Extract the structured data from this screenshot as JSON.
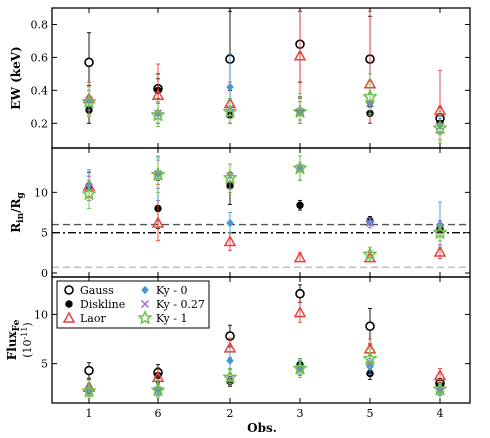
{
  "chart_data": {
    "type": "scatter",
    "x_categories": [
      "1",
      "6",
      "2",
      "3",
      "5",
      "4"
    ],
    "xlabel": "Obs.",
    "legend": {
      "placement": "lower-left of bottom panel",
      "entries": [
        {
          "key": "gauss",
          "label": "Gauss"
        },
        {
          "key": "diskline",
          "label": "Diskline"
        },
        {
          "key": "laor",
          "label": "Laor"
        },
        {
          "key": "ky0",
          "label": "Ky - 0"
        },
        {
          "key": "ky027",
          "label": "Ky - 0.27"
        },
        {
          "key": "ky1",
          "label": "Ky - 1"
        }
      ]
    },
    "series_styles": {
      "gauss": {
        "marker": "open-circle",
        "color": "#000000"
      },
      "diskline": {
        "marker": "filled-circle",
        "color": "#000000"
      },
      "laor": {
        "marker": "open-triangle",
        "color": "#e8413c"
      },
      "ky0": {
        "marker": "filled-diamond",
        "color": "#3f9bd6"
      },
      "ky027": {
        "marker": "x",
        "color": "#9b6fcf"
      },
      "ky1": {
        "marker": "open-star",
        "color": "#6cc24a"
      }
    },
    "panels": [
      {
        "id": "ew",
        "ylabel_main": "EW (keV)",
        "ylabel_sub": "",
        "ylim": [
          0.05,
          0.9
        ],
        "yticks": [
          0.2,
          0.4,
          0.6,
          0.8
        ],
        "yticklabels": [
          "0.2",
          "0.4",
          "0.6",
          "0.8"
        ],
        "hlines": [],
        "series": [
          {
            "key": "gauss",
            "points": [
              [
                0,
                0.57,
                0.75,
                0.43
              ],
              [
                1,
                0.41,
                0.5,
                0.35
              ],
              [
                2,
                0.59,
                0.88,
                0.4
              ],
              [
                3,
                0.68,
                0.88,
                0.45
              ],
              [
                4,
                0.59,
                0.85,
                0.3
              ],
              [
                5,
                0.23,
                0.3,
                0.17
              ]
            ]
          },
          {
            "key": "diskline",
            "points": [
              [
                0,
                0.28,
                0.35,
                0.2
              ],
              [
                1,
                0.4,
                0.47,
                0.33
              ],
              [
                2,
                0.25,
                0.3,
                0.2
              ],
              [
                3,
                0.27,
                0.36,
                0.2
              ],
              [
                4,
                0.26,
                0.3,
                0.2
              ],
              [
                5,
                0.2,
                0.26,
                0.14
              ]
            ]
          },
          {
            "key": "laor",
            "points": [
              [
                0,
                0.35,
                0.45,
                0.25
              ],
              [
                1,
                0.37,
                0.56,
                0.2
              ],
              [
                2,
                0.32,
                0.45,
                0.2
              ],
              [
                3,
                0.61,
                0.88,
                0.35
              ],
              [
                4,
                0.44,
                0.88,
                0.2
              ],
              [
                5,
                0.28,
                0.52,
                0.1
              ]
            ]
          },
          {
            "key": "ky0",
            "points": [
              [
                0,
                0.34,
                0.4,
                0.28
              ],
              [
                1,
                0.26,
                0.32,
                0.2
              ],
              [
                2,
                0.42,
                0.62,
                0.3
              ],
              [
                3,
                0.27,
                0.33,
                0.22
              ],
              [
                4,
                0.32,
                0.38,
                0.26
              ],
              [
                5,
                0.19,
                0.24,
                0.14
              ]
            ]
          },
          {
            "key": "ky027",
            "points": [
              [
                0,
                0.34,
                0.4,
                0.28
              ],
              [
                1,
                0.26,
                0.32,
                0.2
              ],
              [
                2,
                0.29,
                0.35,
                0.23
              ],
              [
                3,
                0.27,
                0.33,
                0.22
              ],
              [
                4,
                0.32,
                0.38,
                0.26
              ],
              [
                5,
                0.18,
                0.23,
                0.13
              ]
            ]
          },
          {
            "key": "ky1",
            "points": [
              [
                0,
                0.33,
                0.42,
                0.24
              ],
              [
                1,
                0.25,
                0.33,
                0.18
              ],
              [
                2,
                0.27,
                0.35,
                0.2
              ],
              [
                3,
                0.27,
                0.38,
                0.2
              ],
              [
                4,
                0.36,
                0.5,
                0.25
              ],
              [
                5,
                0.17,
                0.27,
                0.08
              ]
            ]
          }
        ]
      },
      {
        "id": "rin",
        "ylabel_main": "R",
        "ylabel_sub": "in",
        "ylabel_mid": "/R",
        "ylabel_sub2": "g",
        "ylim": [
          -0.5,
          15.5
        ],
        "yticks": [
          0,
          5,
          10
        ],
        "yticklabels": [
          "0",
          "5",
          "10"
        ],
        "hlines": [
          {
            "y": 6.0,
            "style": "dashed",
            "color": "#555555"
          },
          {
            "y": 5.0,
            "style": "dashdot",
            "color": "#000000"
          },
          {
            "y": 0.7,
            "style": "dashed",
            "color": "#bbbbbb"
          }
        ],
        "series": [
          {
            "key": "diskline",
            "points": [
              [
                0,
                10.8,
                12.5,
                9.0
              ],
              [
                1,
                8.0,
                11.5,
                5.5
              ],
              [
                2,
                10.8,
                12.5,
                8.5
              ],
              [
                3,
                8.4,
                9.0,
                7.8
              ],
              [
                4,
                6.5,
                7.0,
                6.0
              ],
              [
                5,
                5.5,
                6.0,
                5.0
              ]
            ]
          },
          {
            "key": "laor",
            "points": [
              [
                0,
                10.8,
                12.0,
                9.5
              ],
              [
                1,
                6.2,
                11.0,
                4.0
              ],
              [
                2,
                3.9,
                5.0,
                2.8
              ],
              [
                3,
                1.9,
                2.5,
                1.4
              ],
              [
                4,
                1.9,
                2.5,
                1.4
              ],
              [
                5,
                2.6,
                3.5,
                1.8
              ]
            ]
          },
          {
            "key": "ky0",
            "points": [
              [
                0,
                10.9,
                12.8,
                9.0
              ],
              [
                1,
                12.3,
                14.5,
                9.0
              ],
              [
                2,
                6.2,
                7.5,
                5.0
              ],
              [
                3,
                13.0,
                14.5,
                11.5
              ],
              [
                4,
                6.2,
                6.8,
                5.6
              ],
              [
                5,
                6.0,
                8.8,
                3.2
              ]
            ]
          },
          {
            "key": "ky027",
            "points": [
              [
                0,
                10.5,
                12.0,
                9.0
              ],
              [
                1,
                12.3,
                14.0,
                10.5
              ],
              [
                2,
                12.0,
                13.5,
                10.5
              ],
              [
                3,
                13.0,
                14.5,
                11.5
              ],
              [
                4,
                6.2,
                6.8,
                5.6
              ],
              [
                5,
                5.5,
                6.5,
                4.5
              ]
            ]
          },
          {
            "key": "ky1",
            "points": [
              [
                0,
                9.8,
                11.5,
                8.0
              ],
              [
                1,
                12.2,
                14.3,
                10.0
              ],
              [
                2,
                11.8,
                13.5,
                10.0
              ],
              [
                3,
                13.0,
                14.5,
                11.5
              ],
              [
                4,
                2.3,
                3.2,
                1.5
              ],
              [
                5,
                5.0,
                6.0,
                4.0
              ]
            ]
          }
        ]
      },
      {
        "id": "flux",
        "ylabel_main": "Flux",
        "ylabel_sub": "Fe",
        "ylabel_second": "(10",
        "ylabel_second_sup": "-11",
        "ylabel_second_end": ")",
        "ylim": [
          1.0,
          13.8
        ],
        "yticks": [
          5,
          10
        ],
        "yticklabels": [
          "5",
          "10"
        ],
        "hlines": [],
        "series": [
          {
            "key": "gauss",
            "points": [
              [
                0,
                4.3,
                5.1,
                3.5
              ],
              [
                1,
                4.1,
                4.9,
                3.3
              ],
              [
                2,
                7.8,
                8.9,
                6.7
              ],
              [
                3,
                12.1,
                13.0,
                11.2
              ],
              [
                4,
                8.8,
                10.6,
                7.0
              ],
              [
                5,
                3.0,
                3.5,
                2.5
              ]
            ]
          },
          {
            "key": "diskline",
            "points": [
              [
                0,
                2.5,
                3.0,
                2.0
              ],
              [
                1,
                3.8,
                4.5,
                3.1
              ],
              [
                2,
                3.2,
                3.7,
                2.7
              ],
              [
                3,
                4.9,
                5.5,
                4.3
              ],
              [
                4,
                4.0,
                4.6,
                3.4
              ],
              [
                5,
                2.8,
                3.3,
                2.3
              ]
            ]
          },
          {
            "key": "laor",
            "points": [
              [
                0,
                2.6,
                3.4,
                1.8
              ],
              [
                1,
                3.6,
                4.6,
                2.6
              ],
              [
                2,
                6.6,
                7.6,
                5.6
              ],
              [
                3,
                10.2,
                11.2,
                9.2
              ],
              [
                4,
                6.5,
                7.5,
                5.5
              ],
              [
                5,
                3.8,
                4.5,
                3.1
              ]
            ]
          },
          {
            "key": "ky0",
            "points": [
              [
                0,
                2.4,
                3.0,
                1.8
              ],
              [
                1,
                2.4,
                3.0,
                1.8
              ],
              [
                2,
                5.3,
                6.2,
                4.4
              ],
              [
                3,
                4.6,
                5.3,
                3.9
              ],
              [
                4,
                4.7,
                5.5,
                3.9
              ],
              [
                5,
                2.4,
                2.9,
                1.9
              ]
            ]
          },
          {
            "key": "ky027",
            "points": [
              [
                0,
                2.3,
                2.9,
                1.7
              ],
              [
                1,
                2.3,
                2.9,
                1.7
              ],
              [
                2,
                3.5,
                4.0,
                3.0
              ],
              [
                3,
                4.5,
                5.2,
                3.8
              ],
              [
                4,
                5.1,
                5.8,
                4.4
              ],
              [
                5,
                2.3,
                2.8,
                1.8
              ]
            ]
          },
          {
            "key": "ky1",
            "points": [
              [
                0,
                2.2,
                3.3,
                1.5
              ],
              [
                1,
                2.3,
                3.3,
                1.5
              ],
              [
                2,
                3.6,
                4.5,
                2.8
              ],
              [
                3,
                4.5,
                5.5,
                3.6
              ],
              [
                4,
                5.5,
                6.5,
                4.6
              ],
              [
                5,
                2.4,
                3.0,
                1.7
              ]
            ]
          }
        ]
      }
    ]
  }
}
